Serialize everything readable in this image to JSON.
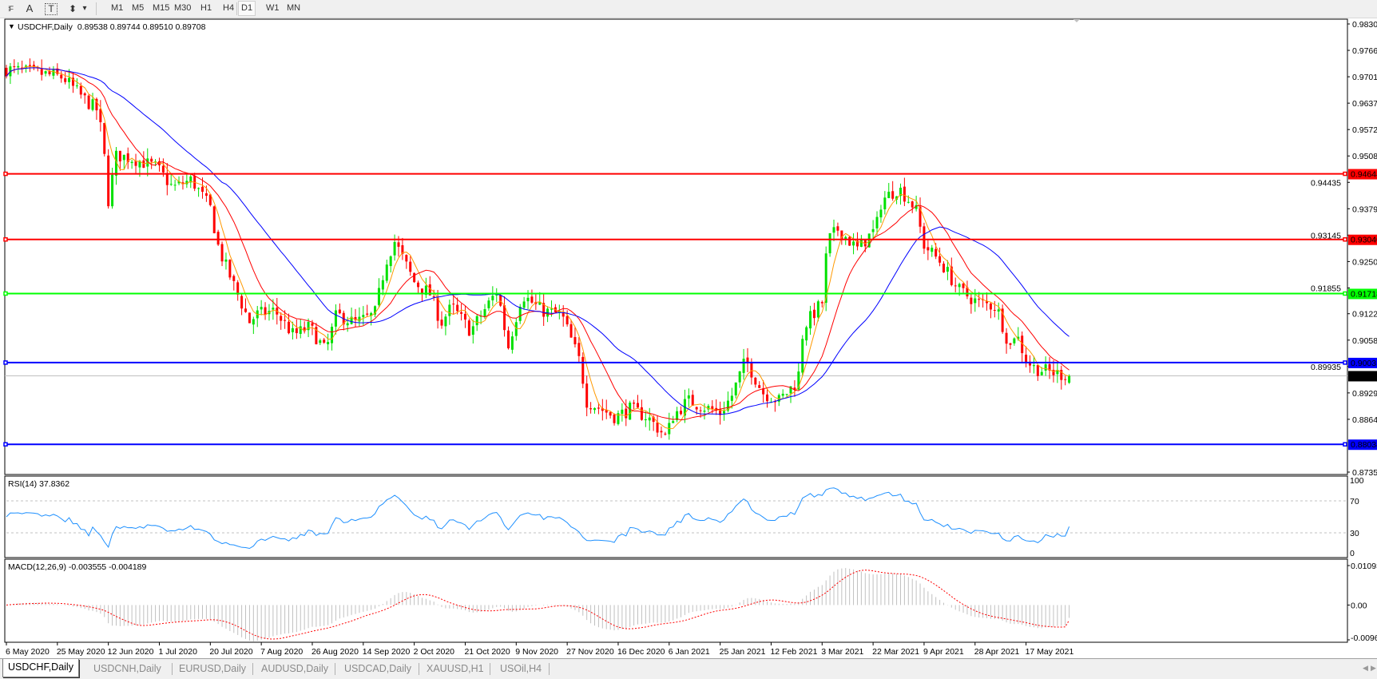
{
  "toolbar": {
    "tools": [
      {
        "name": "fibo-fan-icon",
        "glyph": "⁞F"
      },
      {
        "name": "text-icon",
        "glyph": "A"
      },
      {
        "name": "text-label-icon",
        "glyph": "T"
      },
      {
        "name": "arrows-icon",
        "glyph": "⬍"
      },
      {
        "name": "dropdown-icon",
        "glyph": "▾"
      }
    ],
    "timeframes": [
      "M1",
      "M5",
      "M15",
      "M30",
      "H1",
      "H4",
      "D1",
      "W1",
      "MN"
    ],
    "active_timeframe": "D1"
  },
  "chart": {
    "symbol_label": "USDCHF,Daily",
    "ohlc_text": "0.89538 0.89744 0.89510 0.89708",
    "collapse_icon": "▼",
    "rsi_label": "RSI(14) 37.8362",
    "macd_label": "MACD(12,26,9) -0.003555 -0.004189"
  },
  "tabs": [
    {
      "label": "USDCHF,Daily",
      "active": true
    },
    {
      "label": "USDCNH,Daily",
      "active": false
    },
    {
      "label": "EURUSD,Daily",
      "active": false
    },
    {
      "label": "AUDUSD,Daily",
      "active": false
    },
    {
      "label": "USDCAD,Daily",
      "active": false
    },
    {
      "label": "XAUUSD,H1",
      "active": false
    },
    {
      "label": "USOil,H4",
      "active": false
    }
  ],
  "chart_data": [
    {
      "type": "candlestick",
      "title": "USDCHF,Daily",
      "ylim": [
        0.87355,
        0.98305
      ],
      "y_tick_labels": [
        "0.98305",
        "0.97660",
        "0.97015",
        "0.96370",
        "0.95725",
        "0.95080",
        "0.94435",
        "0.93790",
        "0.93145",
        "0.92500",
        "0.91855",
        "0.91225",
        "0.90580",
        "0.89935",
        "0.89290",
        "0.88645",
        "0.87355"
      ],
      "x_tick_labels": [
        "6 May 2020",
        "25 May 2020",
        "12 Jun 2020",
        "1 Jul 2020",
        "20 Jul 2020",
        "7 Aug 2020",
        "26 Aug 2020",
        "14 Sep 2020",
        "2 Oct 2020",
        "21 Oct 2020",
        "9 Nov 2020",
        "27 Nov 2020",
        "16 Dec 2020",
        "6 Jan 2021",
        "25 Jan 2021",
        "12 Feb 2021",
        "3 Mar 2021",
        "22 Mar 2021",
        "9 Apr 2021",
        "28 Apr 2021",
        "17 May 2021"
      ],
      "last_bar": {
        "open": 0.89538,
        "high": 0.89744,
        "low": 0.8951,
        "close": 0.89708
      },
      "approx_close_path": [
        [
          "6 May 2020",
          0.972
        ],
        [
          "18 May 2020",
          0.971
        ],
        [
          "27 May 2020",
          0.97
        ],
        [
          "3 Jun 2020",
          0.965
        ],
        [
          "8 Jun 2020",
          0.962
        ],
        [
          "10 Jun 2020",
          0.955
        ],
        [
          "12 Jun 2020",
          0.94
        ],
        [
          "15 Jun 2020",
          0.951
        ],
        [
          "22 Jun 2020",
          0.95
        ],
        [
          "30 Jun 2020",
          0.948
        ],
        [
          "6 Jul 2020",
          0.943
        ],
        [
          "13 Jul 2020",
          0.945
        ],
        [
          "20 Jul 2020",
          0.938
        ],
        [
          "23 Jul 2020",
          0.928
        ],
        [
          "29 Jul 2020",
          0.918
        ],
        [
          "3 Aug 2020",
          0.91
        ],
        [
          "5 Aug 2020",
          0.912
        ],
        [
          "12 Aug 2020",
          0.913
        ],
        [
          "19 Aug 2020",
          0.907
        ],
        [
          "25 Aug 2020",
          0.909
        ],
        [
          "31 Aug 2020",
          0.903
        ],
        [
          "4 Sep 2020",
          0.912
        ],
        [
          "11 Sep 2020",
          0.91
        ],
        [
          "18 Sep 2020",
          0.912
        ],
        [
          "22 Sep 2020",
          0.925
        ],
        [
          "25 Sep 2020",
          0.93
        ],
        [
          "2 Oct 2020",
          0.92
        ],
        [
          "8 Oct 2020",
          0.917
        ],
        [
          "12 Oct 2020",
          0.91
        ],
        [
          "16 Oct 2020",
          0.914
        ],
        [
          "23 Oct 2020",
          0.908
        ],
        [
          "2 Nov 2020",
          0.918
        ],
        [
          "6 Nov 2020",
          0.904
        ],
        [
          "11 Nov 2020",
          0.917
        ],
        [
          "18 Nov 2020",
          0.913
        ],
        [
          "25 Nov 2020",
          0.912
        ],
        [
          "2 Dec 2020",
          0.9
        ],
        [
          "4 Dec 2020",
          0.891
        ],
        [
          "15 Dec 2020",
          0.887
        ],
        [
          "21 Dec 2020",
          0.889
        ],
        [
          "28 Dec 2020",
          0.887
        ],
        [
          "5 Jan 2021",
          0.882
        ],
        [
          "7 Jan 2021",
          0.887
        ],
        [
          "13 Jan 2021",
          0.891
        ],
        [
          "25 Jan 2021",
          0.888
        ],
        [
          "29 Jan 2021",
          0.892
        ],
        [
          "3 Feb 2021",
          0.901
        ],
        [
          "9 Feb 2021",
          0.893
        ],
        [
          "15 Feb 2021",
          0.891
        ],
        [
          "22 Feb 2021",
          0.896
        ],
        [
          "24 Feb 2021",
          0.909
        ],
        [
          "3 Mar 2021",
          0.915
        ],
        [
          "5 Mar 2021",
          0.93
        ],
        [
          "9 Mar 2021",
          0.933
        ],
        [
          "16 Mar 2021",
          0.928
        ],
        [
          "23 Mar 2021",
          0.933
        ],
        [
          "25 Mar 2021",
          0.94
        ],
        [
          "31 Mar 2021",
          0.943
        ],
        [
          "6 Apr 2021",
          0.938
        ],
        [
          "9 Apr 2021",
          0.929
        ],
        [
          "15 Apr 2021",
          0.925
        ],
        [
          "22 Apr 2021",
          0.918
        ],
        [
          "29 Apr 2021",
          0.915
        ],
        [
          "6 May 2021",
          0.914
        ],
        [
          "11 May 2021",
          0.904
        ],
        [
          "13 May 2021",
          0.908
        ],
        [
          "17 May 2021",
          0.901
        ],
        [
          "20 May 2021",
          0.899
        ],
        [
          "26 May 2021",
          0.898
        ],
        [
          "2 Jun 2021",
          0.89708
        ]
      ],
      "moving_averages": [
        {
          "color": "#ff9900"
        },
        {
          "color": "#ff0000"
        },
        {
          "color": "#0000ff"
        }
      ],
      "horizontal_levels": [
        {
          "value": 0.94644,
          "label": "0.94644",
          "color": "#ff0000"
        },
        {
          "value": 0.9304,
          "label": "0.93040",
          "color": "#ff0000"
        },
        {
          "value": 0.91718,
          "label": "0.91718",
          "color": "#00ff00"
        },
        {
          "value": 0.90031,
          "label": "0.90031",
          "color": "#0000ff"
        },
        {
          "value": 0.88034,
          "label": "0.88034",
          "color": "#0000ff"
        }
      ],
      "current_price": {
        "value": 0.89708,
        "label": "0.89708"
      },
      "colors": {
        "bull": "#00e000",
        "bear": "#ff0000"
      },
      "grid": false
    },
    {
      "type": "line",
      "title": "RSI(14) 37.8362",
      "ylim": [
        0,
        100
      ],
      "y_tick_labels": [
        "100",
        "70",
        "30",
        "0"
      ],
      "levels": [
        70,
        30
      ],
      "color": "#1e90ff",
      "last_value": 37.8362
    },
    {
      "type": "bar",
      "title": "MACD(12,26,9) -0.003555 -0.004189",
      "ylim": [
        -0.00965,
        0.01093
      ],
      "y_tick_labels": [
        "0.01093",
        "0.00",
        "-0.00965"
      ],
      "last_main": -0.003555,
      "last_signal": -0.004189,
      "histogram_color": "#c0c0c0",
      "signal_color": "#ff0000"
    }
  ]
}
